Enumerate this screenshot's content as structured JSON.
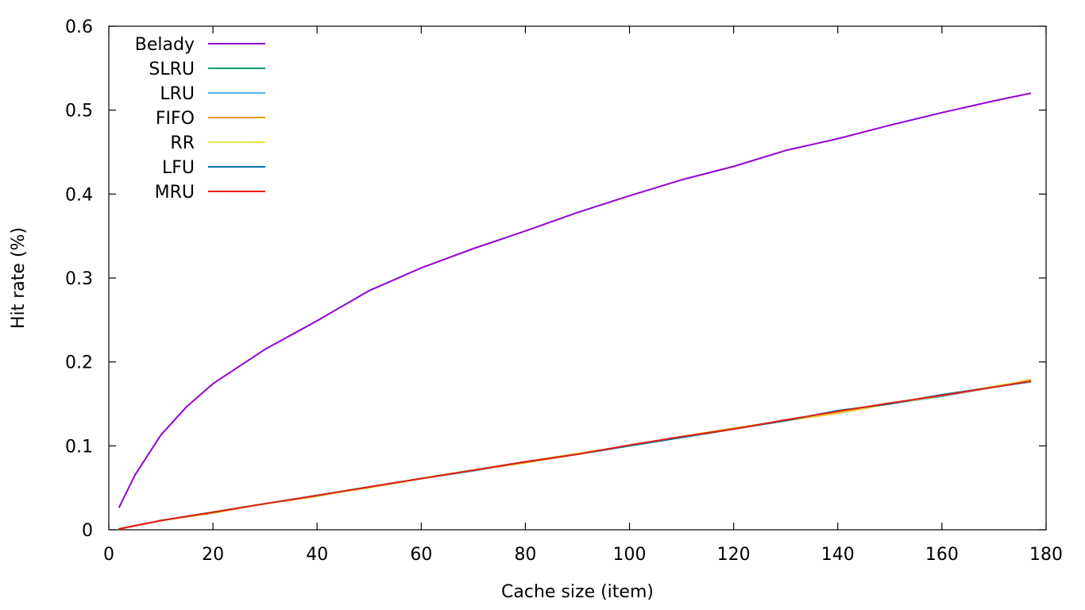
{
  "chart_data": {
    "type": "line",
    "xlabel": "Cache size (item)",
    "ylabel": "Hit rate (%)",
    "xlim": [
      0,
      180
    ],
    "ylim": [
      0,
      0.6
    ],
    "xticks": [
      "0",
      "20",
      "40",
      "60",
      "80",
      "100",
      "120",
      "140",
      "160",
      "180"
    ],
    "yticks": [
      "0",
      "0.1",
      "0.2",
      "0.3",
      "0.4",
      "0.5",
      "0.6"
    ],
    "grid": false,
    "legend_position": "top-left",
    "series": [
      {
        "name": "Belady",
        "color": "#9400d3",
        "x": [
          2,
          5,
          10,
          15,
          20,
          30,
          40,
          50,
          60,
          70,
          80,
          90,
          100,
          110,
          120,
          130,
          140,
          150,
          160,
          170,
          177
        ],
        "y": [
          0.027,
          0.065,
          0.113,
          0.147,
          0.174,
          0.215,
          0.249,
          0.285,
          0.312,
          0.335,
          0.356,
          0.378,
          0.398,
          0.417,
          0.433,
          0.452,
          0.466,
          0.482,
          0.497,
          0.511,
          0.52
        ]
      },
      {
        "name": "SLRU",
        "color": "#009e73",
        "x": [
          2,
          10,
          20,
          30,
          40,
          50,
          60,
          70,
          80,
          90,
          100,
          110,
          120,
          130,
          140,
          150,
          160,
          170,
          177
        ],
        "y": [
          0.001,
          0.011,
          0.021,
          0.031,
          0.041,
          0.051,
          0.061,
          0.071,
          0.081,
          0.09,
          0.1,
          0.11,
          0.12,
          0.13,
          0.14,
          0.15,
          0.16,
          0.17,
          0.177
        ]
      },
      {
        "name": "LRU",
        "color": "#56b4e9",
        "x": [
          2,
          10,
          20,
          30,
          40,
          50,
          60,
          70,
          80,
          90,
          100,
          110,
          120,
          130,
          140,
          150,
          160,
          170,
          177
        ],
        "y": [
          0.001,
          0.011,
          0.021,
          0.031,
          0.041,
          0.051,
          0.061,
          0.07,
          0.081,
          0.09,
          0.1,
          0.11,
          0.12,
          0.131,
          0.14,
          0.15,
          0.159,
          0.17,
          0.176
        ]
      },
      {
        "name": "FIFO",
        "color": "#e69f00",
        "x": [
          2,
          10,
          20,
          30,
          40,
          50,
          60,
          70,
          80,
          90,
          100,
          110,
          120,
          130,
          140,
          150,
          160,
          170,
          177
        ],
        "y": [
          0.001,
          0.011,
          0.02,
          0.031,
          0.04,
          0.051,
          0.061,
          0.071,
          0.08,
          0.09,
          0.1,
          0.111,
          0.121,
          0.13,
          0.139,
          0.15,
          0.16,
          0.17,
          0.179
        ]
      },
      {
        "name": "RR",
        "color": "#f0e442",
        "x": [
          2,
          10,
          20,
          30,
          40,
          50,
          60,
          70,
          80,
          90,
          100,
          110,
          120,
          130,
          140,
          150,
          160,
          170,
          177
        ],
        "y": [
          0.001,
          0.011,
          0.021,
          0.031,
          0.041,
          0.05,
          0.061,
          0.071,
          0.081,
          0.091,
          0.1,
          0.11,
          0.12,
          0.13,
          0.14,
          0.15,
          0.16,
          0.171,
          0.178
        ]
      },
      {
        "name": "LFU",
        "color": "#0072b2",
        "x": [
          2,
          10,
          20,
          30,
          40,
          50,
          60,
          70,
          80,
          90,
          100,
          110,
          120,
          130,
          140,
          150,
          160,
          170,
          177
        ],
        "y": [
          0.001,
          0.011,
          0.021,
          0.031,
          0.041,
          0.051,
          0.061,
          0.071,
          0.081,
          0.09,
          0.1,
          0.11,
          0.12,
          0.13,
          0.142,
          0.15,
          0.161,
          0.17,
          0.177
        ]
      },
      {
        "name": "MRU",
        "color": "#e51e10",
        "x": [
          2,
          10,
          20,
          30,
          40,
          50,
          60,
          70,
          80,
          90,
          100,
          110,
          120,
          130,
          140,
          150,
          160,
          170,
          177
        ],
        "y": [
          0.001,
          0.011,
          0.021,
          0.031,
          0.041,
          0.051,
          0.061,
          0.071,
          0.081,
          0.09,
          0.101,
          0.111,
          0.12,
          0.131,
          0.141,
          0.151,
          0.16,
          0.17,
          0.177
        ]
      }
    ]
  }
}
